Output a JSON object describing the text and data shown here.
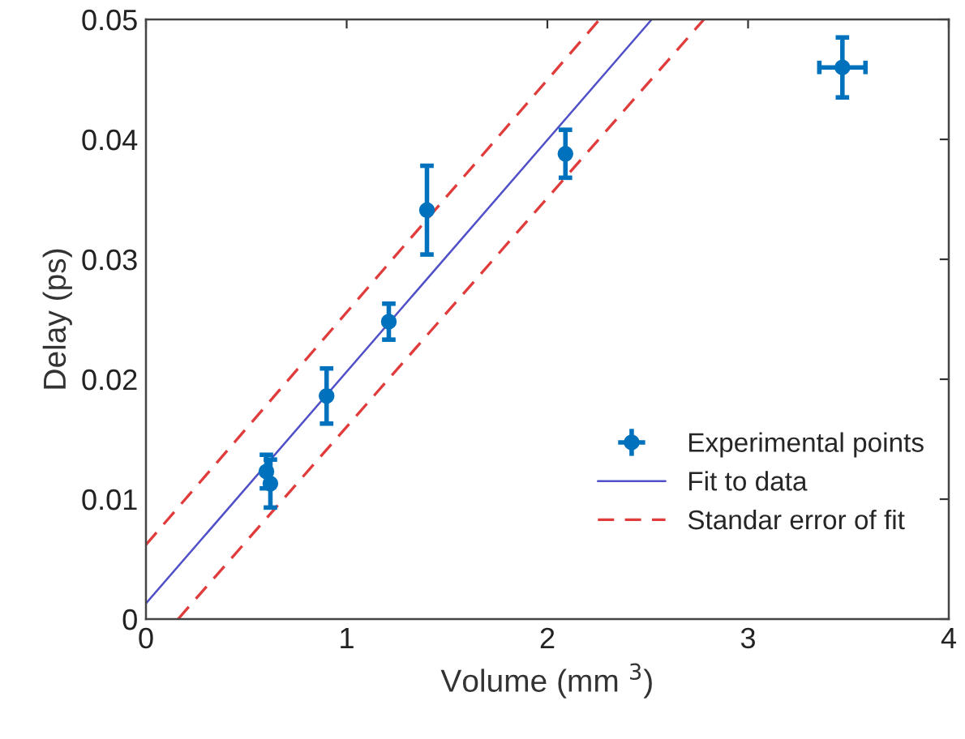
{
  "chart_data": {
    "type": "scatter",
    "xlabel": "Volume (mm $^{3}$)",
    "ylabel": "Delay (ps)",
    "xlim": [
      0,
      4
    ],
    "ylim": [
      0,
      0.05
    ],
    "xticks": [
      0,
      1,
      2,
      3,
      4
    ],
    "yticks": [
      0,
      0.01,
      0.02,
      0.03,
      0.04,
      0.05
    ],
    "grid": false,
    "legend": "lower right",
    "series": [
      {
        "name": "Experimental points",
        "marker": "circle",
        "color": "#0072bd",
        "x": [
          0.6,
          0.62,
          0.9,
          1.21,
          1.4,
          2.09,
          3.47
        ],
        "values": [
          0.0123,
          0.0113,
          0.0186,
          0.0248,
          0.0341,
          0.0388,
          0.046
        ],
        "errors": [
          0.0014,
          0.002,
          0.0023,
          0.0015,
          0.0037,
          0.002,
          0.0025
        ],
        "xerrors": [
          null,
          null,
          null,
          null,
          null,
          null,
          0.115
        ]
      },
      {
        "name": "Fit to data",
        "type": "line",
        "color": "#5050c8",
        "line_style": "solid",
        "x": [
          0,
          2.52
        ],
        "values": [
          0.0013,
          0.05
        ]
      },
      {
        "name": "Standar error of fit",
        "type": "line",
        "color": "#e03c3c",
        "line_style": "dashed",
        "x": [
          0,
          2.26
        ],
        "values": [
          0.0062,
          0.05
        ]
      },
      {
        "type": "line",
        "color": "#e03c3c",
        "line_style": "dashed",
        "x": [
          0.16,
          2.78
        ],
        "values": [
          0,
          0.05
        ]
      }
    ]
  }
}
